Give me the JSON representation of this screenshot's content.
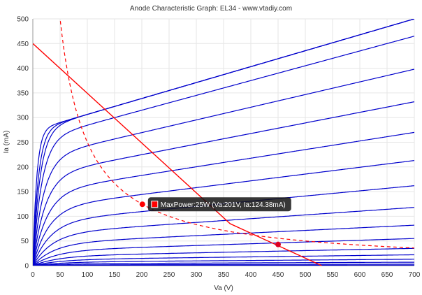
{
  "chart_data": {
    "type": "line",
    "title": "Anode Characteristic Graph: EL34 - www.vtadiy.com",
    "xlabel": "Va (V)",
    "ylabel": "Ia (mA)",
    "xlim": [
      0,
      700
    ],
    "ylim": [
      0,
      500
    ],
    "xticks": [
      0,
      50,
      100,
      150,
      200,
      250,
      300,
      350,
      400,
      450,
      500,
      550,
      600,
      650,
      700
    ],
    "yticks": [
      0,
      50,
      100,
      150,
      200,
      250,
      300,
      350,
      400,
      450,
      500
    ],
    "grid": true,
    "curve_color": "#0000cc",
    "curve_ia_at_700v": [
      500,
      500,
      500,
      465,
      398,
      332,
      270,
      213,
      162,
      118,
      82,
      55,
      35,
      22,
      13,
      7,
      3,
      1
    ],
    "load_line": {
      "color": "#ff0000",
      "x": [
        0,
        362,
        530
      ],
      "y": [
        450,
        85,
        0
      ]
    },
    "max_power_curve": {
      "watts": 25,
      "color": "#ff0000"
    },
    "markers": [
      {
        "x": 201,
        "y": 124.38,
        "color": "#ff0000"
      },
      {
        "x": 450,
        "y": 43,
        "color": "#dd0022"
      }
    ],
    "tooltip": {
      "text": "MaxPower:25W (Va:201V, Ia:124.38mA)",
      "swatch_color": "#ff0000"
    }
  }
}
